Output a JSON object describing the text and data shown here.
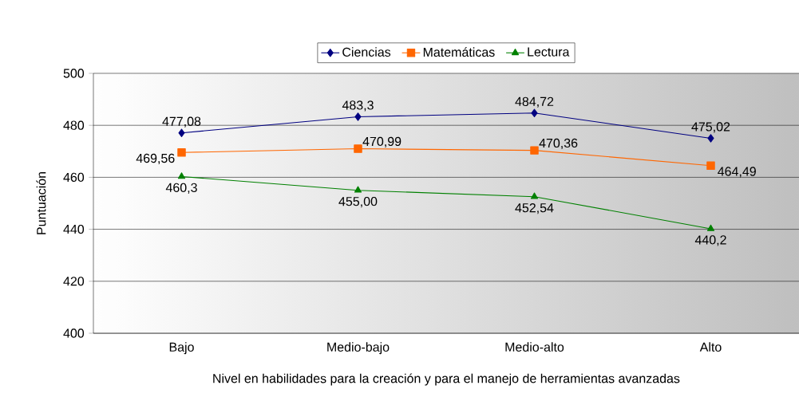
{
  "chart_data": {
    "type": "line",
    "xlabel": "Nivel en habilidades para la creación y para el manejo de herramientas avanzadas",
    "ylabel": "Puntuación",
    "categories": [
      "Bajo",
      "Medio-bajo",
      "Medio-alto",
      "Alto"
    ],
    "series": [
      {
        "name": "Ciencias",
        "color": "#000080",
        "marker": "diamond",
        "values": [
          477.08,
          483.3,
          484.72,
          475.02
        ],
        "value_labels": [
          "477,08",
          "483,3",
          "484,72",
          "475,02"
        ]
      },
      {
        "name": "Matemáticas",
        "color": "#ff6600",
        "marker": "square",
        "values": [
          469.56,
          470.99,
          470.36,
          464.49
        ],
        "value_labels": [
          "469,56",
          "470,99",
          "470,36",
          "464,49"
        ]
      },
      {
        "name": "Lectura",
        "color": "#008000",
        "marker": "triangle",
        "values": [
          460.3,
          455.0,
          452.54,
          440.2
        ],
        "value_labels": [
          "460,3",
          "455,00",
          "452,54",
          "440,2"
        ]
      }
    ],
    "ylim": [
      400,
      500
    ],
    "yticks": [
      400,
      420,
      440,
      460,
      480,
      500
    ],
    "grid": "y",
    "legend": "top",
    "line_style": "solid"
  }
}
